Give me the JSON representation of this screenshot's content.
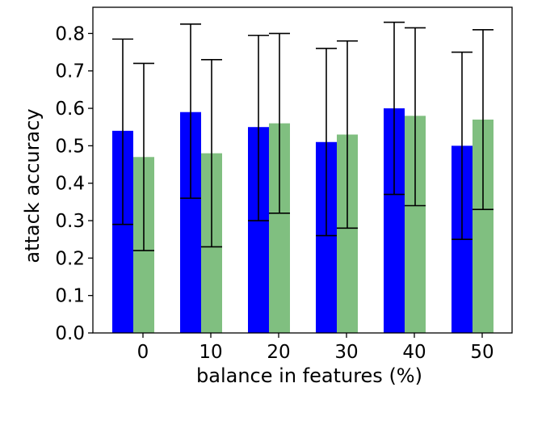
{
  "chart_data": {
    "type": "bar",
    "xlabel": "balance in features (%)",
    "ylabel": "attack accuracy",
    "categories": [
      "0",
      "10",
      "20",
      "30",
      "40",
      "50"
    ],
    "ylim": [
      0.0,
      0.87
    ],
    "yticks": [
      "0.0",
      "0.1",
      "0.2",
      "0.3",
      "0.4",
      "0.5",
      "0.6",
      "0.7",
      "0.8"
    ],
    "grid": false,
    "legend": "none",
    "error_bars": true,
    "series": [
      {
        "color": "#0000ff",
        "values": [
          0.54,
          0.59,
          0.55,
          0.51,
          0.6,
          0.5
        ],
        "err_low": [
          0.29,
          0.36,
          0.3,
          0.26,
          0.37,
          0.25
        ],
        "err_high": [
          0.785,
          0.825,
          0.795,
          0.76,
          0.83,
          0.75
        ]
      },
      {
        "color": "#80bf80",
        "values": [
          0.47,
          0.48,
          0.56,
          0.53,
          0.58,
          0.57
        ],
        "err_low": [
          0.22,
          0.23,
          0.32,
          0.28,
          0.34,
          0.33
        ],
        "err_high": [
          0.72,
          0.73,
          0.8,
          0.78,
          0.815,
          0.81
        ]
      }
    ]
  }
}
